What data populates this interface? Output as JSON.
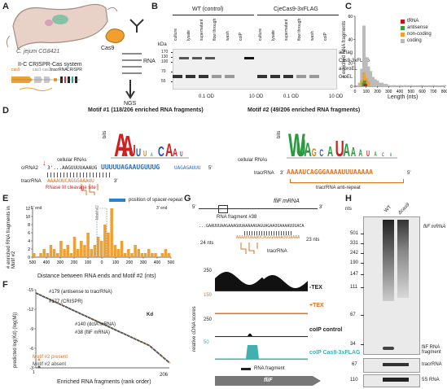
{
  "panels": {
    "A": {
      "label": "A",
      "organism": "C. jejuni CG8421",
      "system": "II-C CRISPR-Cas system",
      "cas9": "Cas9",
      "rna": "RNA",
      "ngs": "NGS",
      "genes": [
        "cas9",
        "cas1",
        "cas2",
        "tracrRNA",
        "CRISPR"
      ]
    },
    "B": {
      "label": "B",
      "groups": [
        "WT (control)",
        "CjeCas9-3xFLAG"
      ],
      "lanes": [
        "culture",
        "lysate",
        "supernatant",
        "flow through",
        "wash",
        "coIP"
      ],
      "kda_label": "kDa",
      "markers": [
        "170",
        "130",
        "100",
        "70",
        "55"
      ],
      "right_labels": [
        "a-Flag",
        "Cas9-3xFLAG",
        "a-GroEL",
        "GroEL"
      ],
      "od_labels": [
        "0.1 OD",
        "10 OD",
        "0.1 OD",
        "10 OD"
      ]
    },
    "C": {
      "label": "C",
      "ylabel": "# enriched RNA fragments",
      "xlabel": "Length (nts)",
      "legend": [
        "tRNA",
        "antisense",
        "non-coding",
        "coding"
      ]
    },
    "D": {
      "label": "D",
      "motif1_title": "Motif #1 (118/206 enriched RNA fragments)",
      "motif2_title": "Motif #2 (49/206 enriched RNA fragments)",
      "bits": "bits",
      "cellular_rnas": "cellular RNAs",
      "crrna": "crRNA2",
      "tracrrna": "tracrRNA",
      "crrna_seq1": "3'...AAGUUUUAAAUG",
      "crrna_seq2": "UUUUUAGAAUGUUUG",
      "crrna_seq3": "UAGAGAUUU",
      "tracr_seq1": "AAAAUUCAGGGAAAUU",
      "rnase": "RNase III cleavage site",
      "motif2_seq": "AAAAUCAGGGAAAAUUUAAAAA",
      "antirepeat": "tracrRNA anti-repeat",
      "p5": "5'",
      "p3": "3'"
    },
    "E": {
      "label": "E",
      "legend": "position of spacer-repeat",
      "ylabel": "# enriched RNA fragments in Motif #2",
      "xlabel": "Distance between RNA ends and Motif #2 (nts)",
      "end5": "5' end",
      "end3": "3' end",
      "motif_tag": "Motif #2"
    },
    "F": {
      "label": "F",
      "ylabel": "predicted log(Kd) (log(M))",
      "xlabel": "Enriched RNA fragments (rank order)",
      "ann1": "#179 (antisense to tracrRNA)",
      "ann2": "#177 (CRISPR)",
      "ann3": "#140 (dctA mRNA)",
      "ann4": "#38 (fliF mRNA)",
      "legend": [
        "Motif #2 present",
        "Motif #2 absent"
      ],
      "kd": "Kd",
      "rank_end": "206",
      "rank_start": "1"
    },
    "G": {
      "label": "G",
      "mrna": "fliF mRNA",
      "fragment": "RNA fragment #38",
      "seq_top": "...GAAUUUAAGAAAGUUAAAAAUAGUAGAAUUAAAAUUUACA",
      "seq_bot": "AAAAUUAAAUCAGGGAAAAUUUAAAA",
      "nts1": "24 nts",
      "nts2": "23 nts",
      "tracr": "tracrRNA",
      "tracks": [
        "-TEX",
        "+TEX",
        "coIP control",
        "coIP Cas9-3xFLAG"
      ],
      "scale": [
        "250",
        "150",
        "250",
        "50"
      ],
      "ylabel": "relative cDNA scores",
      "frag_label": "RNA fragment",
      "gene": "fliF"
    },
    "H": {
      "label": "H",
      "nts": "nts",
      "lanes": [
        "WT",
        "Δcas9"
      ],
      "markers": [
        "501",
        "331",
        "242",
        "190",
        "147",
        "111",
        "67",
        "34"
      ],
      "right": [
        "fliF mRNA",
        "fliF RNA fragment",
        "tracrRNA",
        "5S RNA"
      ],
      "m2": [
        "67"
      ],
      "m3": [
        "110"
      ]
    }
  },
  "chart_data": [
    {
      "type": "bar",
      "panel": "C",
      "title": "",
      "xlabel": "Length (nts)",
      "ylabel": "# enriched RNA fragments",
      "xlim": [
        0,
        800
      ],
      "ylim": [
        0,
        60
      ],
      "x_ticks": [
        0,
        100,
        200,
        300,
        400,
        500,
        600,
        700,
        800
      ],
      "y_ticks": [
        0,
        20,
        40,
        60
      ],
      "series": [
        {
          "name": "coding",
          "color": "#bbbbbb",
          "x": [
            40,
            60,
            80,
            100,
            120,
            140,
            160,
            180,
            200,
            220,
            240,
            260,
            280,
            300,
            350,
            400,
            450,
            500,
            600,
            700,
            800
          ],
          "values": [
            3,
            15,
            52,
            25,
            17,
            13,
            8,
            6,
            5,
            3,
            3,
            2,
            2,
            1,
            1,
            1,
            1,
            1,
            1,
            1,
            1
          ]
        },
        {
          "name": "non-coding",
          "color": "#f0a030",
          "x": [
            60,
            80,
            100,
            120
          ],
          "values": [
            5,
            12,
            7,
            4
          ]
        },
        {
          "name": "antisense",
          "color": "#3a9a40",
          "x": [
            70,
            80,
            90
          ],
          "values": [
            3,
            5,
            2
          ]
        },
        {
          "name": "tRNA",
          "color": "#c01818",
          "x": [
            80
          ],
          "values": [
            2
          ]
        }
      ]
    },
    {
      "type": "bar",
      "panel": "E",
      "title": "",
      "xlabel": "Distance between RNA ends and Motif #2 (nts)",
      "ylabel": "# enriched RNA fragments in Motif #2",
      "x_ticks": [
        500,
        400,
        300,
        200,
        100,
        0,
        100,
        200,
        300,
        400,
        500
      ],
      "y_ticks": [
        0,
        2,
        4,
        6,
        8,
        10,
        12
      ],
      "ylim": [
        0,
        12
      ],
      "values": [
        1,
        0,
        1,
        2,
        1,
        3,
        2,
        1,
        4,
        2,
        3,
        1,
        5,
        2,
        4,
        3,
        6,
        2,
        3,
        5,
        4,
        8,
        6,
        12,
        3,
        2,
        4,
        1,
        2,
        1,
        3,
        2,
        1,
        1,
        2,
        1,
        1,
        0,
        1,
        2,
        1
      ]
    },
    {
      "type": "scatter",
      "panel": "F",
      "title": "",
      "xlabel": "Enriched RNA fragments (rank order)",
      "ylabel": "predicted log(Kd) (log(M))",
      "xlim": [
        1,
        206
      ],
      "ylim": [
        -3,
        -15
      ],
      "y_ticks": [
        -3,
        -6,
        -9,
        -12,
        -15
      ],
      "series": [
        {
          "name": "Motif #2 present",
          "color": "#f0a030"
        },
        {
          "name": "Motif #2 absent",
          "color": "#555555"
        }
      ]
    },
    {
      "type": "bar",
      "panel": "G",
      "title": "",
      "ylabel": "relative cDNA scores",
      "series": [
        {
          "name": "-TEX",
          "color": "#111111",
          "scale": 250
        },
        {
          "name": "+TEX",
          "color": "#e07020",
          "scale": 150
        },
        {
          "name": "coIP control",
          "color": "#111111",
          "scale": 250
        },
        {
          "name": "coIP Cas9-3xFLAG",
          "color": "#40b0b0",
          "scale": 50
        }
      ]
    }
  ]
}
